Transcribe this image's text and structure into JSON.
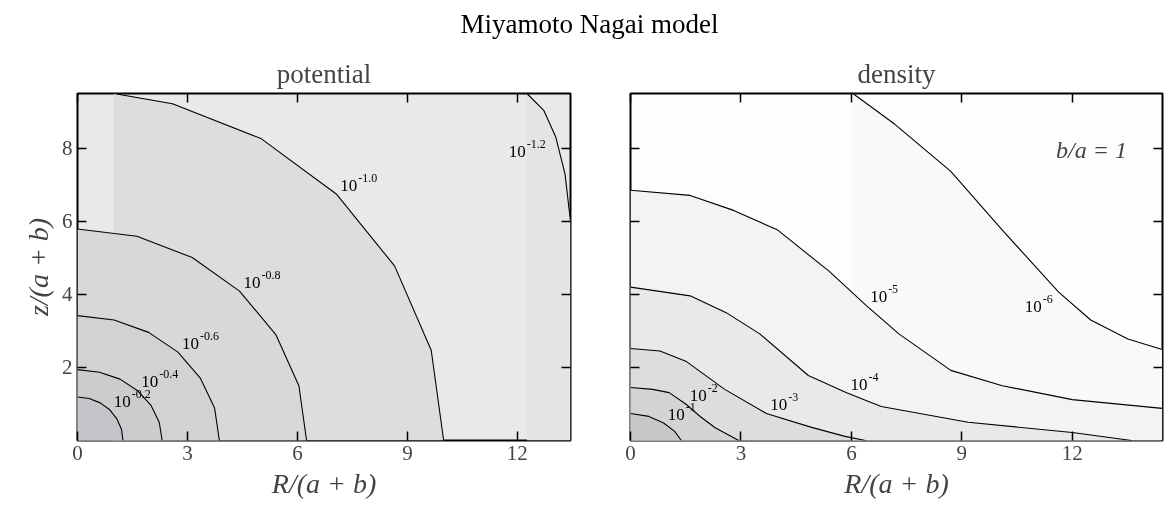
{
  "chart_data": [
    {
      "type": "area",
      "title": "Miyamoto Nagai model",
      "subtitle": "potential",
      "xlabel": "R/(a + b)",
      "ylabel": "z/(a + b)",
      "xlim": [
        0,
        13.45
      ],
      "ylim": [
        0,
        9.5
      ],
      "xticks": [
        0,
        3,
        6,
        9,
        12
      ],
      "yticks": [
        2,
        4,
        6,
        8
      ],
      "series": [
        {
          "name": "10$^{-1.2}$",
          "color": "#e3e4e6",
          "x": [
            12.26,
            12.72,
            13.05,
            13.3,
            13.45
          ],
          "values": [
            9.5,
            9.04,
            8.3,
            7.3,
            6.0
          ]
        },
        {
          "name": "10$^{-1.0}$",
          "color": "#dcdddf",
          "x": [
            0.99,
            2.59,
            5.0,
            7.06,
            8.65,
            9.65,
            9.99
          ],
          "values": [
            9.5,
            9.22,
            8.27,
            6.75,
            4.78,
            2.47,
            0
          ]
        },
        {
          "name": "10$^{-0.8}$",
          "color": "#d7d8da",
          "x": [
            0,
            1.62,
            3.13,
            4.42,
            5.41,
            6.04,
            6.25
          ],
          "values": [
            5.79,
            5.59,
            5.01,
            4.09,
            2.9,
            1.5,
            0
          ]
        },
        {
          "name": "10$^{-0.6}$",
          "color": "#d1d2d4",
          "x": [
            0,
            1.0,
            1.94,
            2.74,
            3.35,
            3.74,
            3.87
          ],
          "values": [
            3.42,
            3.3,
            2.96,
            2.42,
            1.71,
            0.89,
            0
          ]
        },
        {
          "name": "10$^{-0.4}$",
          "color": "#cbccce",
          "x": [
            0,
            0.6,
            1.16,
            1.63,
            2.0,
            2.23,
            2.31
          ],
          "values": [
            1.94,
            1.87,
            1.68,
            1.37,
            0.97,
            0.5,
            0
          ]
        },
        {
          "name": "10$^{-0.2}$",
          "color": "#c4c5c8",
          "x": [
            0,
            0.32,
            0.62,
            0.88,
            1.07,
            1.2,
            1.24
          ],
          "values": [
            1.19,
            1.15,
            1.03,
            0.84,
            0.6,
            0.31,
            0
          ]
        }
      ]
    },
    {
      "type": "area",
      "title": "density",
      "xlabel": "R/(a + b)",
      "tick_labels": "x",
      "xlim": [
        0,
        14.45
      ],
      "ylim": [
        0,
        9.5
      ],
      "xticks": [
        0,
        3,
        6,
        9,
        12
      ],
      "yticks": [
        2,
        4,
        6,
        8
      ],
      "annotations": [
        "b/a = 1"
      ],
      "series": [
        {
          "name": "10$^{-6}$",
          "color": "#f9f9f9",
          "x": [
            6.04,
            7.19,
            8.7,
            10.1,
            11.63,
            12.5,
            13.51,
            14.44
          ],
          "values": [
            9.5,
            8.65,
            7.37,
            5.76,
            4.06,
            3.3,
            2.78,
            2.49
          ]
        },
        {
          "name": "10$^{-5}$",
          "color": "#f2f3f3",
          "x": [
            0,
            1.62,
            2.8,
            4.0,
            5.4,
            6.4,
            7.29,
            8.7,
            10.1,
            12.0,
            14.44
          ],
          "values": [
            6.85,
            6.71,
            6.3,
            5.76,
            4.63,
            3.7,
            2.92,
            1.92,
            1.5,
            1.12,
            0.88
          ]
        },
        {
          "name": "10$^{-4}$",
          "color": "#e8e9ea",
          "x": [
            0,
            1.62,
            2.6,
            3.51,
            4.83,
            5.87,
            6.81,
            9.17,
            12.0,
            13.61
          ],
          "values": [
            4.2,
            3.96,
            3.5,
            2.92,
            1.78,
            1.31,
            0.93,
            0.5,
            0.22,
            0
          ]
        },
        {
          "name": "10$^{-3}$",
          "color": "#dcdddf",
          "x": [
            0,
            0.8,
            1.52,
            2.56,
            3.69,
            4.92,
            5.8,
            6.38
          ],
          "values": [
            2.52,
            2.45,
            2.16,
            1.4,
            0.74,
            0.36,
            0.12,
            0
          ]
        },
        {
          "name": "10$^{-2}$",
          "color": "#d3d4d6",
          "x": [
            0,
            0.6,
            1.05,
            1.5,
            1.9,
            2.3,
            2.94
          ],
          "values": [
            1.45,
            1.4,
            1.31,
            1.0,
            0.65,
            0.35,
            0
          ]
        },
        {
          "name": "10$^{-1}$",
          "color": "#c7c8ca",
          "x": [
            0,
            0.5,
            0.9,
            1.2,
            1.38
          ],
          "values": [
            0.74,
            0.66,
            0.48,
            0.25,
            0
          ]
        }
      ]
    }
  ]
}
